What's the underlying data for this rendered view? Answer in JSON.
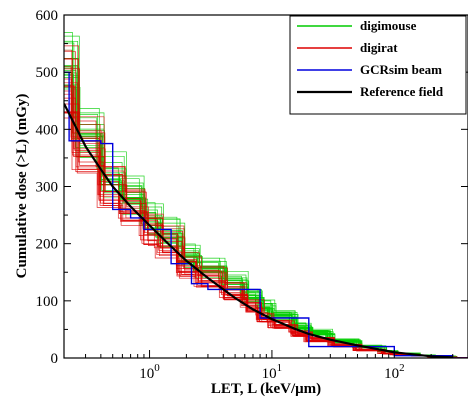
{
  "chart_data": {
    "type": "line",
    "x_scale": "log",
    "xlabel": "LET, L (keV/μm)",
    "ylabel": "Cumulative dose (>L) (mGy)",
    "xlim": [
      0.2,
      400
    ],
    "ylim": [
      0,
      600
    ],
    "x_ticks": [
      {
        "value": 1,
        "base": "10",
        "exp": "0"
      },
      {
        "value": 10,
        "base": "10",
        "exp": "1"
      },
      {
        "value": 100,
        "base": "10",
        "exp": "2"
      }
    ],
    "y_ticks": [
      0,
      100,
      200,
      300,
      400,
      500,
      600
    ],
    "grid": false,
    "legend_position": "top-right",
    "series": [
      {
        "name": "digimouse",
        "color": "#00cc00",
        "style": "step",
        "x": [
          0.2,
          0.25,
          0.4,
          0.6,
          0.9,
          1.2,
          1.8,
          2.5,
          4,
          6,
          8,
          10,
          15,
          20,
          30,
          50,
          80,
          100,
          150,
          200,
          300
        ],
        "y": [
          520,
          395,
          320,
          285,
          245,
          220,
          180,
          160,
          135,
          110,
          90,
          75,
          55,
          45,
          30,
          20,
          12,
          8,
          5,
          3,
          1
        ]
      },
      {
        "name": "digirat",
        "color": "#dd0000",
        "style": "step",
        "x": [
          0.2,
          0.25,
          0.4,
          0.6,
          0.9,
          1.2,
          1.8,
          2.5,
          4,
          6,
          8,
          10,
          15,
          20,
          30,
          50,
          80,
          100,
          150,
          200,
          300
        ],
        "y": [
          480,
          370,
          300,
          265,
          225,
          200,
          160,
          140,
          115,
          90,
          70,
          58,
          42,
          32,
          22,
          14,
          8,
          6,
          4,
          2,
          1
        ]
      },
      {
        "name": "GCRsim beam",
        "color": "#0000dd",
        "style": "step",
        "x": [
          0.2,
          0.22,
          0.4,
          0.5,
          0.7,
          0.9,
          1.5,
          2.2,
          3,
          8,
          20,
          100,
          300
        ],
        "y": [
          500,
          380,
          375,
          260,
          245,
          225,
          165,
          130,
          120,
          70,
          20,
          4,
          0
        ]
      },
      {
        "name": "Reference field",
        "color": "#000000",
        "style": "smooth",
        "x": [
          0.2,
          0.3,
          0.4,
          0.5,
          0.7,
          1,
          1.5,
          2,
          3,
          5,
          7,
          10,
          15,
          20,
          30,
          50,
          100,
          200,
          300
        ],
        "y": [
          445,
          370,
          330,
          300,
          265,
          232,
          195,
          170,
          140,
          105,
          85,
          68,
          52,
          42,
          32,
          22,
          10,
          3,
          1
        ]
      }
    ]
  }
}
